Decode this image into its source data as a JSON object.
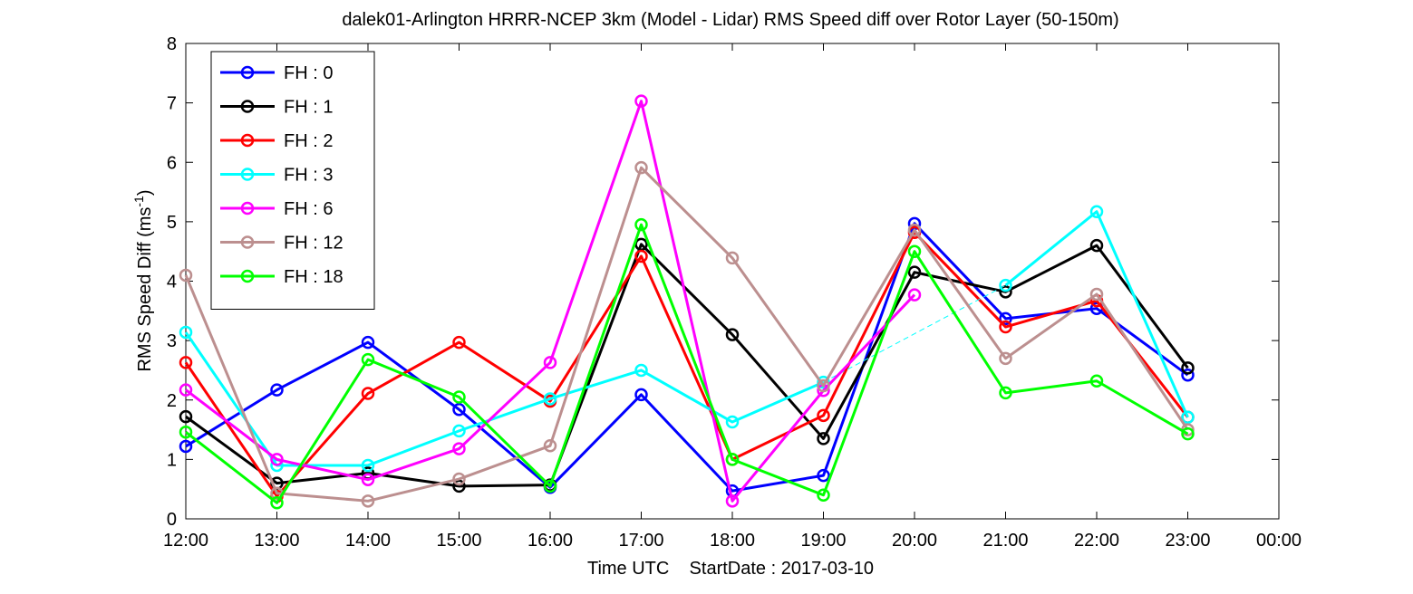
{
  "chart_data": {
    "type": "line",
    "title": "dalek01-Arlington HRRR-NCEP 3km (Model - Lidar) RMS Speed diff over Rotor Layer (50-150m)",
    "xlabel": "Time UTC    StartDate : 2017-03-10",
    "ylabel": "RMS Speed Diff (ms",
    "ylabel_sup": "-1",
    "ylabel_close": ")",
    "x_ticks": [
      "12:00",
      "13:00",
      "14:00",
      "15:00",
      "16:00",
      "17:00",
      "18:00",
      "19:00",
      "20:00",
      "21:00",
      "22:00",
      "23:00",
      "00:00"
    ],
    "y_ticks": [
      "0",
      "1",
      "2",
      "3",
      "4",
      "5",
      "6",
      "7",
      "8"
    ],
    "ylim": [
      0,
      8
    ],
    "xlim_hours": [
      0,
      12
    ],
    "grid": false,
    "legend_position": "top-left",
    "series": [
      {
        "name": "FH : 0",
        "color": "#0000ff",
        "values": [
          1.22,
          2.17,
          2.97,
          1.84,
          0.53,
          2.09,
          0.47,
          0.73,
          4.97,
          3.37,
          3.54,
          2.42
        ]
      },
      {
        "name": "FH : 1",
        "color": "#000000",
        "values": [
          1.72,
          0.6,
          0.77,
          0.55,
          0.57,
          4.62,
          3.1,
          1.35,
          4.15,
          3.82,
          4.6,
          2.54
        ]
      },
      {
        "name": "FH : 2",
        "color": "#ff0000",
        "values": [
          2.63,
          0.38,
          2.11,
          2.97,
          1.98,
          4.42,
          1.0,
          1.74,
          4.82,
          3.23,
          3.67,
          1.71
        ]
      },
      {
        "name": "FH : 3",
        "color": "#00ffff",
        "values": [
          3.14,
          0.9,
          0.9,
          1.48,
          2.02,
          2.5,
          1.63,
          2.3,
          null,
          3.93,
          5.17,
          1.71
        ],
        "gap_dashed": [
          [
            7,
            9
          ]
        ]
      },
      {
        "name": "FH : 6",
        "color": "#ff00ff",
        "values": [
          2.17,
          1.0,
          0.66,
          1.18,
          2.63,
          7.03,
          0.3,
          2.16,
          3.77,
          null,
          null,
          null
        ]
      },
      {
        "name": "FH : 12",
        "color": "#bc8f8f",
        "values": [
          4.1,
          0.43,
          0.3,
          0.67,
          1.23,
          5.91,
          4.39,
          2.24,
          4.86,
          2.7,
          3.78,
          1.5
        ]
      },
      {
        "name": "FH : 18",
        "color": "#00ff00",
        "values": [
          1.46,
          0.27,
          2.68,
          2.05,
          0.55,
          4.95,
          1.0,
          0.4,
          4.5,
          2.12,
          2.32,
          1.43
        ]
      }
    ]
  }
}
